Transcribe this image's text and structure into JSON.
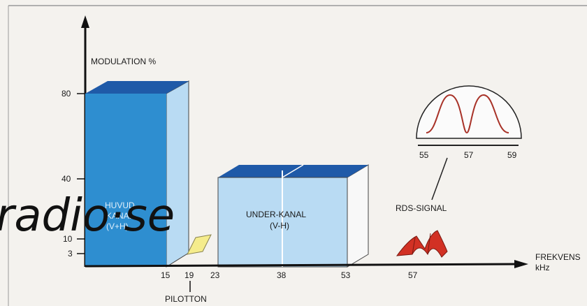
{
  "y_axis": {
    "label": "MODULATION %",
    "ticks": [
      {
        "value": 80,
        "label": "80"
      },
      {
        "value": 40,
        "label": "40"
      },
      {
        "value": 10,
        "label": "10"
      },
      {
        "value": 3,
        "label": "3"
      }
    ]
  },
  "x_axis": {
    "label_line1": "FREKVENS",
    "label_line2": "kHz",
    "ticks": [
      "15",
      "19",
      "23",
      "38",
      "53",
      "57"
    ]
  },
  "blocks": {
    "main_channel": {
      "label_line1": "HUVUD-",
      "label_line2": "KANAL",
      "label_line3": "(V+H)",
      "from_khz": 0,
      "to_khz": 15,
      "level": 80
    },
    "sub_channel": {
      "label_line1": "UNDER-KANAL",
      "label_line2": "(V-H)",
      "from_khz": 23,
      "to_khz": 53,
      "level": 40
    },
    "pilot": {
      "label": "PILOTTON",
      "khz": 19,
      "level": 10
    }
  },
  "rds": {
    "label": "RDS-SIGNAL",
    "inset_ticks": [
      "55",
      "57",
      "59"
    ]
  },
  "colors": {
    "front": "#2e8ed0",
    "top": "#1f5aa8",
    "side": "#b9dbf3",
    "pilot": "#f5ec8c",
    "rds": "#d23124",
    "curve": "#a83228"
  },
  "watermark": "radio·se"
}
